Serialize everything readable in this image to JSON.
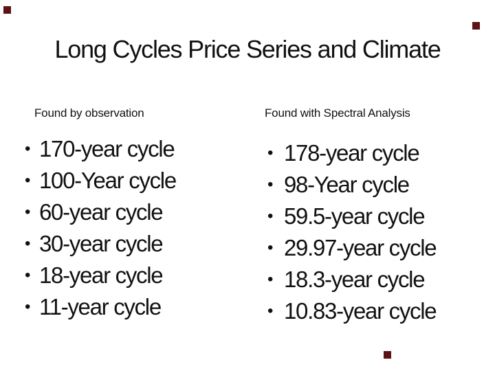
{
  "slide": {
    "title": "Long Cycles Price Series and Climate",
    "bullet_glyph": "•",
    "columns": [
      {
        "header": "Found by observation",
        "items": [
          "170-year cycle",
          "100-Year cycle",
          "60-year cycle",
          "30-year cycle",
          "18-year cycle",
          "11-year cycle"
        ]
      },
      {
        "header": "Found with Spectral Analysis",
        "items": [
          "178-year cycle",
          "98-Year cycle",
          "59.5-year cycle",
          "29.97-year cycle",
          "18.3-year cycle",
          "10.83-year cycle"
        ]
      }
    ],
    "colors": {
      "background": "#ffffff",
      "text": "#111111",
      "corner_marker": "#5b1313"
    }
  }
}
